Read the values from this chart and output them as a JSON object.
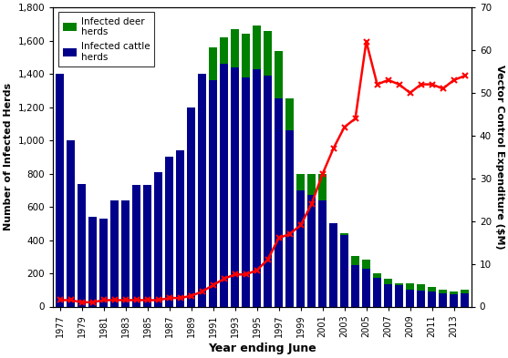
{
  "years": [
    1977,
    1978,
    1979,
    1980,
    1981,
    1982,
    1983,
    1984,
    1985,
    1986,
    1987,
    1988,
    1989,
    1990,
    1991,
    1992,
    1993,
    1994,
    1995,
    1996,
    1997,
    1998,
    1999,
    2000,
    2001,
    2002,
    2003,
    2004,
    2005,
    2006,
    2007,
    2008,
    2009,
    2010,
    2011,
    2012,
    2013,
    2014
  ],
  "cattle_herds": [
    1400,
    1000,
    740,
    540,
    530,
    640,
    640,
    730,
    730,
    810,
    900,
    940,
    1200,
    1400,
    1360,
    1460,
    1440,
    1380,
    1430,
    1390,
    1250,
    1060,
    700,
    670,
    640,
    500,
    430,
    250,
    230,
    175,
    135,
    130,
    100,
    95,
    90,
    80,
    75,
    80
  ],
  "deer_herds": [
    0,
    0,
    0,
    0,
    0,
    0,
    0,
    0,
    0,
    0,
    0,
    0,
    0,
    0,
    200,
    160,
    230,
    260,
    260,
    270,
    290,
    195,
    100,
    130,
    160,
    0,
    10,
    55,
    55,
    25,
    30,
    10,
    40,
    40,
    30,
    20,
    15,
    20
  ],
  "line_x": [
    1977,
    1978,
    1979,
    1980,
    1981,
    1982,
    1983,
    1984,
    1985,
    1986,
    1987,
    1988,
    1989,
    1990,
    1991,
    1992,
    1993,
    1994,
    1995,
    1996,
    1997,
    1998,
    1999,
    2000,
    2001,
    2002,
    2003,
    2004,
    2005,
    2006,
    2007,
    2008,
    2009,
    2010,
    2011,
    2012,
    2013,
    2014
  ],
  "line_y": [
    1.5,
    1.5,
    1.0,
    1.0,
    1.5,
    1.5,
    1.5,
    1.5,
    1.5,
    1.5,
    2.0,
    2.0,
    2.5,
    3.5,
    5.0,
    6.5,
    7.5,
    7.5,
    8.5,
    11,
    16,
    17,
    19,
    24,
    31,
    37,
    42,
    44,
    62,
    52,
    53,
    52,
    50,
    52,
    52,
    51,
    53,
    54
  ],
  "xlabel": "Year ending June",
  "ylabel_left": "Number of Infected Herds",
  "ylabel_right": "Vector Control Expenditure ($M)",
  "ylim_left": [
    0,
    1800
  ],
  "ylim_right": [
    0,
    70
  ],
  "yticks_left": [
    0,
    200,
    400,
    600,
    800,
    1000,
    1200,
    1400,
    1600,
    1800
  ],
  "yticks_right": [
    0,
    10,
    20,
    30,
    40,
    50,
    60,
    70
  ],
  "xtick_labels": [
    "1977",
    "1979",
    "1981",
    "1983",
    "1985",
    "1987",
    "1989",
    "1991",
    "1993",
    "1995",
    "1997",
    "1999",
    "2001",
    "2003",
    "2005",
    "2007",
    "2009",
    "2011",
    "2013"
  ],
  "xtick_positions": [
    1977,
    1979,
    1981,
    1983,
    1985,
    1987,
    1989,
    1991,
    1993,
    1995,
    1997,
    1999,
    2001,
    2003,
    2005,
    2007,
    2009,
    2011,
    2013
  ],
  "bar_width": 0.75,
  "cattle_color": "#00008B",
  "deer_color": "#008000",
  "line_color": "#FF0000",
  "background_color": "#ffffff"
}
